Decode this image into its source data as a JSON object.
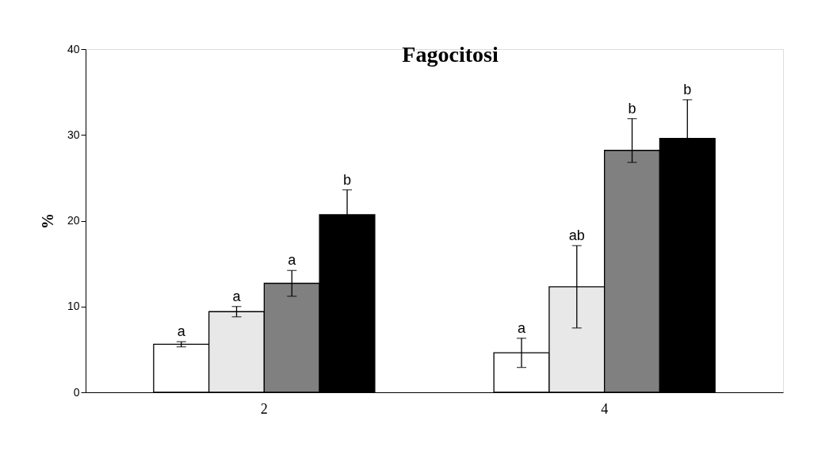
{
  "chart_data": {
    "type": "bar",
    "title": "Fagocitosi",
    "ylabel": "%",
    "categories": [
      "2",
      "4"
    ],
    "series": [
      {
        "color": "#ffffff",
        "values": [
          5.6,
          4.6
        ],
        "errors": [
          0.3,
          1.7
        ],
        "value_labels": [
          "a",
          "a"
        ]
      },
      {
        "color": "#e8e8e8",
        "values": [
          9.4,
          12.3
        ],
        "errors": [
          0.6,
          4.8
        ],
        "value_labels": [
          "a",
          "ab"
        ]
      },
      {
        "color": "#808080",
        "values": [
          12.7,
          28.2
        ],
        "errors": [
          1.5,
          [
            26.8,
            31.9
          ]
        ],
        "value_labels": [
          "a",
          "b"
        ]
      },
      {
        "color": "#000000",
        "values": [
          20.7,
          29.6
        ],
        "errors": [
          2.9,
          4.5
        ],
        "value_labels": [
          "b",
          "b"
        ]
      }
    ],
    "ylim": [
      0,
      40
    ],
    "yticks": [
      0,
      10,
      20,
      30,
      40
    ],
    "grid": false
  }
}
